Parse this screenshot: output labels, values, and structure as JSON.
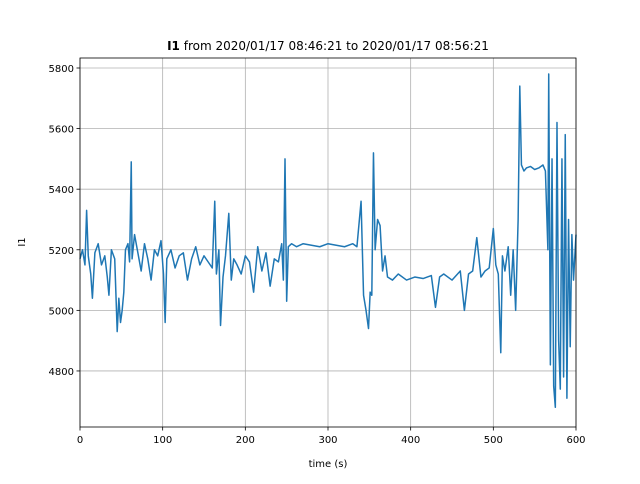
{
  "chart_data": {
    "type": "line",
    "title": {
      "signal": "I1",
      "text": "from 2020/01/17 08:46:21 to 2020/01/17 08:56:21"
    },
    "x_label": "time (s)",
    "y_label": "I1",
    "grid": true,
    "xlim": [
      0,
      600
    ],
    "ylim": [
      4615,
      5833
    ],
    "xticks": [
      0,
      100,
      200,
      300,
      400,
      500,
      600
    ],
    "yticks": [
      4800,
      5000,
      5200,
      5400,
      5600,
      5800
    ],
    "series": [
      {
        "color": "#1f77b4",
        "x": [
          0,
          3,
          6,
          8,
          10,
          13,
          15,
          18,
          22,
          26,
          30,
          33,
          35,
          38,
          42,
          45,
          47,
          49,
          51,
          53,
          55,
          58,
          60,
          62,
          63,
          66,
          70,
          74,
          78,
          82,
          86,
          90,
          94,
          98,
          101,
          103,
          105,
          110,
          115,
          120,
          125,
          130,
          135,
          140,
          145,
          150,
          155,
          160,
          163,
          165,
          168,
          170,
          173,
          176,
          180,
          183,
          186,
          190,
          195,
          200,
          205,
          210,
          215,
          220,
          225,
          230,
          235,
          240,
          244,
          246,
          248,
          250,
          252,
          256,
          262,
          270,
          280,
          290,
          300,
          310,
          320,
          330,
          335,
          338,
          340,
          343,
          346,
          349,
          351,
          353,
          355,
          357,
          360,
          363,
          366,
          369,
          372,
          378,
          385,
          395,
          405,
          415,
          425,
          430,
          435,
          440,
          450,
          460,
          465,
          470,
          475,
          480,
          485,
          490,
          495,
          500,
          503,
          506,
          509,
          511,
          514,
          518,
          521,
          524,
          527,
          530,
          532,
          534,
          537,
          540,
          545,
          550,
          555,
          560,
          563,
          566,
          567,
          569,
          571,
          573,
          575,
          577,
          579,
          581,
          583,
          585,
          587,
          589,
          591,
          593,
          595,
          597,
          600
        ],
        "values": [
          5170,
          5200,
          5150,
          5330,
          5180,
          5120,
          5040,
          5190,
          5220,
          5150,
          5180,
          5110,
          5050,
          5200,
          5170,
          4930,
          5040,
          4960,
          5000,
          5060,
          5200,
          5220,
          5160,
          5490,
          5170,
          5250,
          5190,
          5130,
          5220,
          5170,
          5100,
          5200,
          5180,
          5230,
          5120,
          4960,
          5170,
          5200,
          5140,
          5180,
          5190,
          5100,
          5170,
          5210,
          5150,
          5180,
          5160,
          5140,
          5360,
          5120,
          5200,
          4950,
          5110,
          5180,
          5320,
          5100,
          5170,
          5150,
          5120,
          5180,
          5160,
          5060,
          5210,
          5130,
          5190,
          5080,
          5170,
          5160,
          5220,
          5100,
          5500,
          5030,
          5210,
          5220,
          5210,
          5220,
          5215,
          5210,
          5220,
          5215,
          5210,
          5220,
          5210,
          5300,
          5360,
          5050,
          5000,
          4940,
          5060,
          5050,
          5520,
          5200,
          5300,
          5280,
          5130,
          5180,
          5110,
          5100,
          5120,
          5100,
          5110,
          5105,
          5115,
          5010,
          5110,
          5120,
          5100,
          5130,
          5000,
          5120,
          5130,
          5240,
          5110,
          5130,
          5140,
          5270,
          5150,
          5120,
          4860,
          5180,
          5130,
          5210,
          5050,
          5200,
          5000,
          5300,
          5740,
          5480,
          5460,
          5470,
          5475,
          5465,
          5470,
          5480,
          5460,
          5200,
          5780,
          4820,
          5500,
          4750,
          4680,
          5620,
          4900,
          4740,
          5500,
          4780,
          5580,
          4710,
          5300,
          4880,
          5250,
          5100,
          5250
        ]
      }
    ]
  }
}
